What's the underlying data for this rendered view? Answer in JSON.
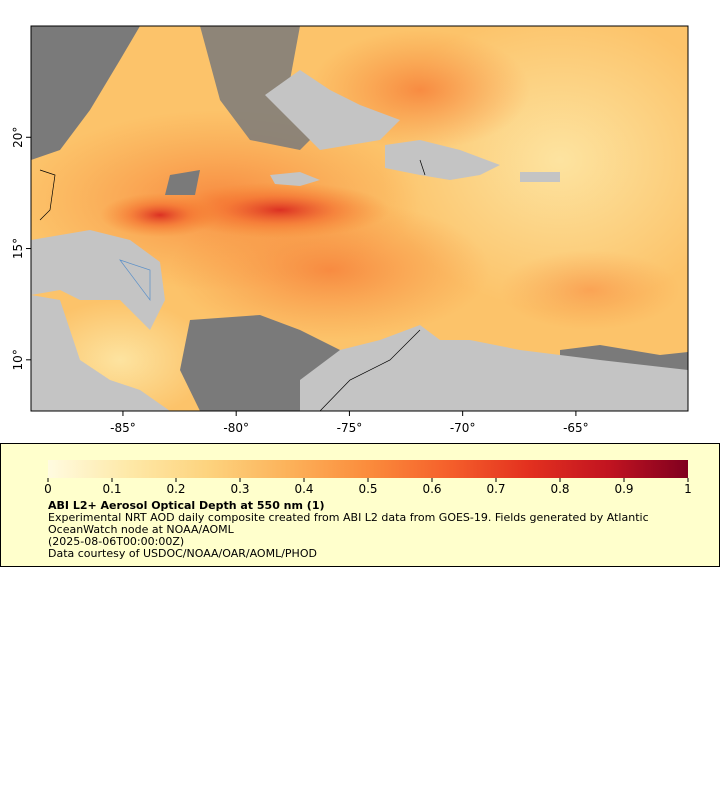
{
  "map": {
    "xlim": [
      -89.06,
      -60.05
    ],
    "ylim": [
      7.7,
      25
    ],
    "xticks": [
      {
        "value": -85,
        "label": "-85°"
      },
      {
        "value": -80,
        "label": "-80°"
      },
      {
        "value": -75,
        "label": "-75°"
      },
      {
        "value": -70,
        "label": "-70°"
      },
      {
        "value": -65,
        "label": "-65°"
      }
    ],
    "yticks": [
      {
        "value": 10,
        "label": "10°"
      },
      {
        "value": 15,
        "label": "15°"
      },
      {
        "value": 20,
        "label": "20°"
      }
    ]
  },
  "legend": {
    "colorbar": {
      "range": [
        0,
        1
      ],
      "ticks": [
        0,
        0.1,
        0.2,
        0.3,
        0.4,
        0.5,
        0.6,
        0.7,
        0.8,
        0.9,
        1
      ],
      "colors": [
        "#fffbe0",
        "#fee9a8",
        "#fdd37e",
        "#fcb25a",
        "#fb8c3c",
        "#f5602b",
        "#e3311f",
        "#c21420",
        "#80001f"
      ]
    },
    "title": "ABI L2+ Aerosol Optical Depth at 550 nm (1)",
    "description": "Experimental NRT AOD daily composite created from ABI L2 data from GOES-19. Fields generated by Atlantic OceanWatch node at NOAA/AOML",
    "date": "(2025-08-06T00:00:00Z)",
    "credit": "Data courtesy of USDOC/NOAA/OAR/AOML/PHOD"
  }
}
